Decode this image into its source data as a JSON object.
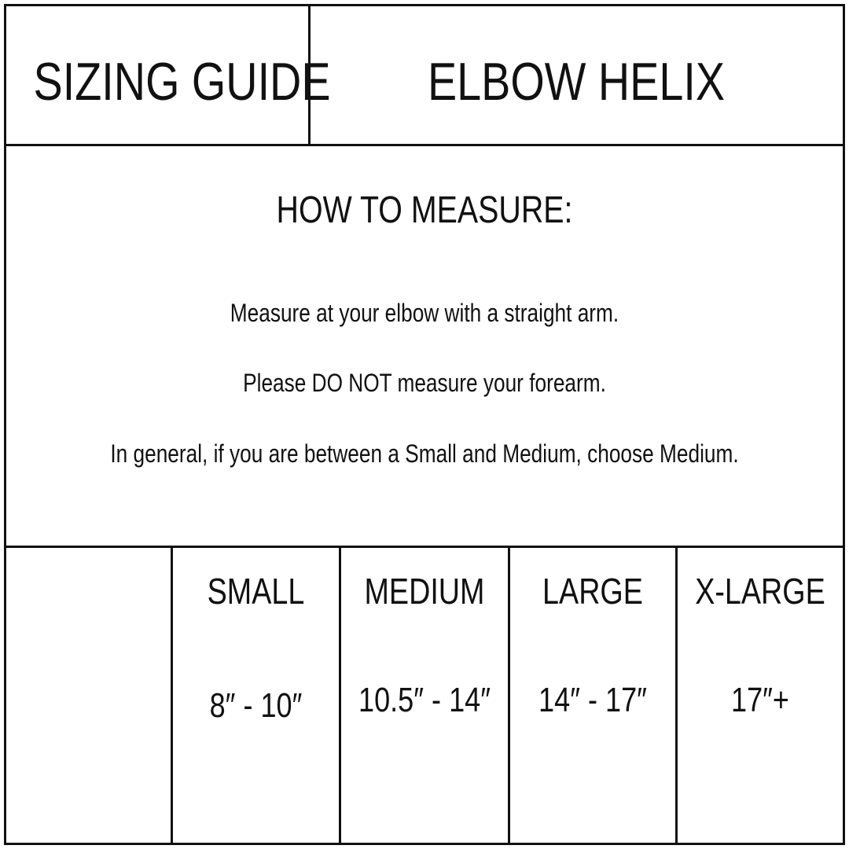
{
  "header": {
    "title": "SIZING GUIDE",
    "product": "ELBOW HELIX"
  },
  "instructions": {
    "heading": "HOW TO MEASURE:",
    "lines": [
      "Measure at your elbow with a straight arm.",
      "Please DO NOT measure your forearm.",
      "In general, if you are between a Small and Medium, choose Medium."
    ]
  },
  "sizes": [
    {
      "label": "SMALL",
      "range": "8″ - 10″"
    },
    {
      "label": "MEDIUM",
      "range": "10.5″ - 14″"
    },
    {
      "label": "LARGE",
      "range": "14″ - 17″"
    },
    {
      "label": "X-LARGE",
      "range": "17″+"
    }
  ]
}
